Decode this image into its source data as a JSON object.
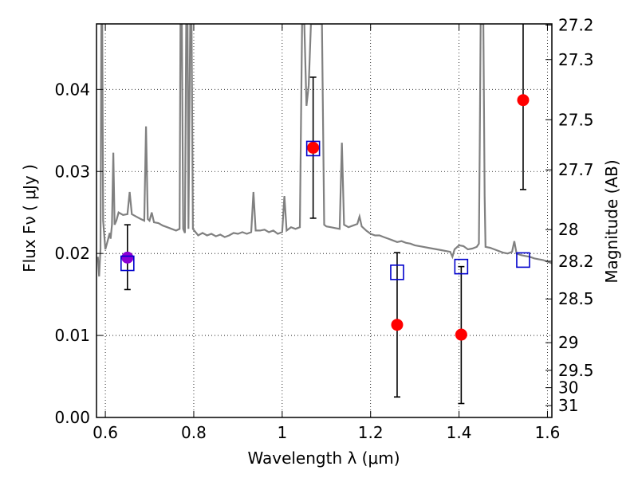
{
  "chart_data": {
    "type": "scatter",
    "xlabel": "Wavelength  λ (μm)",
    "ylabel": "Flux  Fν  ( μJy )",
    "y2label": "Magnitude (AB)",
    "xlim": [
      0.58,
      1.61
    ],
    "ylim": [
      0.0,
      0.048
    ],
    "grid": true,
    "x_ticks": [
      {
        "value": 0.6,
        "label": "0.6"
      },
      {
        "value": 0.8,
        "label": "0.8"
      },
      {
        "value": 1.0,
        "label": "1"
      },
      {
        "value": 1.2,
        "label": "1.2"
      },
      {
        "value": 1.4,
        "label": "1.4"
      },
      {
        "value": 1.6,
        "label": "1.6"
      }
    ],
    "y_ticks": [
      {
        "value": 0.0,
        "label": "0.00"
      },
      {
        "value": 0.01,
        "label": "0.01"
      },
      {
        "value": 0.02,
        "label": "0.02"
      },
      {
        "value": 0.03,
        "label": "0.03"
      },
      {
        "value": 0.04,
        "label": "0.04"
      }
    ],
    "y2_ticks": [
      {
        "value": 27.2,
        "label": "27.2"
      },
      {
        "value": 27.3,
        "label": "27.3"
      },
      {
        "value": 27.5,
        "label": "27.5"
      },
      {
        "value": 27.7,
        "label": "27.7"
      },
      {
        "value": 28.0,
        "label": "28"
      },
      {
        "value": 28.2,
        "label": "28.2"
      },
      {
        "value": 28.5,
        "label": "28.5"
      },
      {
        "value": 29.0,
        "label": "29"
      },
      {
        "value": 29.5,
        "label": "29.5"
      },
      {
        "value": 30.0,
        "label": "30"
      },
      {
        "value": 31.0,
        "label": "31"
      }
    ],
    "series": [
      {
        "kind": "line",
        "color": "#808080",
        "points": [
          [
            0.583,
            0.0196
          ],
          [
            0.586,
            0.0172
          ],
          [
            0.589,
            0.0205
          ],
          [
            0.591,
            0.048
          ],
          [
            0.593,
            0.048
          ],
          [
            0.595,
            0.024
          ],
          [
            0.6,
            0.0205
          ],
          [
            0.605,
            0.0215
          ],
          [
            0.61,
            0.0225
          ],
          [
            0.612,
            0.0218
          ],
          [
            0.615,
            0.0235
          ],
          [
            0.618,
            0.0323
          ],
          [
            0.621,
            0.0235
          ],
          [
            0.625,
            0.024
          ],
          [
            0.63,
            0.025
          ],
          [
            0.64,
            0.0247
          ],
          [
            0.65,
            0.0248
          ],
          [
            0.655,
            0.0275
          ],
          [
            0.66,
            0.0248
          ],
          [
            0.67,
            0.0245
          ],
          [
            0.68,
            0.0242
          ],
          [
            0.688,
            0.024
          ],
          [
            0.692,
            0.0355
          ],
          [
            0.696,
            0.0242
          ],
          [
            0.7,
            0.024
          ],
          [
            0.705,
            0.025
          ],
          [
            0.71,
            0.0238
          ],
          [
            0.72,
            0.0237
          ],
          [
            0.73,
            0.0234
          ],
          [
            0.74,
            0.0232
          ],
          [
            0.75,
            0.023
          ],
          [
            0.76,
            0.0228
          ],
          [
            0.768,
            0.023
          ],
          [
            0.77,
            0.048
          ],
          [
            0.773,
            0.048
          ],
          [
            0.776,
            0.023
          ],
          [
            0.78,
            0.0225
          ],
          [
            0.783,
            0.048
          ],
          [
            0.786,
            0.048
          ],
          [
            0.788,
            0.023
          ],
          [
            0.792,
            0.048
          ],
          [
            0.795,
            0.048
          ],
          [
            0.798,
            0.023
          ],
          [
            0.81,
            0.0222
          ],
          [
            0.82,
            0.0225
          ],
          [
            0.83,
            0.0222
          ],
          [
            0.84,
            0.0224
          ],
          [
            0.85,
            0.0221
          ],
          [
            0.86,
            0.0223
          ],
          [
            0.87,
            0.022
          ],
          [
            0.88,
            0.0222
          ],
          [
            0.89,
            0.0225
          ],
          [
            0.9,
            0.0224
          ],
          [
            0.91,
            0.0226
          ],
          [
            0.92,
            0.0224
          ],
          [
            0.93,
            0.0226
          ],
          [
            0.935,
            0.0275
          ],
          [
            0.94,
            0.0228
          ],
          [
            0.95,
            0.0228
          ],
          [
            0.96,
            0.0229
          ],
          [
            0.97,
            0.0226
          ],
          [
            0.98,
            0.0228
          ],
          [
            0.99,
            0.0224
          ],
          [
            1.0,
            0.0226
          ],
          [
            1.005,
            0.027
          ],
          [
            1.01,
            0.0228
          ],
          [
            1.02,
            0.0232
          ],
          [
            1.03,
            0.023
          ],
          [
            1.04,
            0.0232
          ],
          [
            1.045,
            0.048
          ],
          [
            1.05,
            0.048
          ],
          [
            1.055,
            0.038
          ],
          [
            1.06,
            0.0405
          ],
          [
            1.065,
            0.048
          ],
          [
            1.08,
            0.048
          ],
          [
            1.09,
            0.048
          ],
          [
            1.095,
            0.0235
          ],
          [
            1.1,
            0.0233
          ],
          [
            1.11,
            0.0232
          ],
          [
            1.12,
            0.0231
          ],
          [
            1.13,
            0.023
          ],
          [
            1.135,
            0.0335
          ],
          [
            1.14,
            0.0235
          ],
          [
            1.15,
            0.0232
          ],
          [
            1.16,
            0.0234
          ],
          [
            1.17,
            0.0236
          ],
          [
            1.175,
            0.0245
          ],
          [
            1.18,
            0.0233
          ],
          [
            1.19,
            0.0228
          ],
          [
            1.2,
            0.0224
          ],
          [
            1.21,
            0.0222
          ],
          [
            1.22,
            0.0222
          ],
          [
            1.23,
            0.022
          ],
          [
            1.24,
            0.0218
          ],
          [
            1.25,
            0.0216
          ],
          [
            1.26,
            0.0214
          ],
          [
            1.27,
            0.0215
          ],
          [
            1.28,
            0.0213
          ],
          [
            1.29,
            0.0212
          ],
          [
            1.3,
            0.021
          ],
          [
            1.31,
            0.0209
          ],
          [
            1.32,
            0.0208
          ],
          [
            1.33,
            0.0207
          ],
          [
            1.34,
            0.0206
          ],
          [
            1.35,
            0.0205
          ],
          [
            1.36,
            0.0204
          ],
          [
            1.37,
            0.0203
          ],
          [
            1.38,
            0.0202
          ],
          [
            1.385,
            0.0196
          ],
          [
            1.39,
            0.0205
          ],
          [
            1.4,
            0.021
          ],
          [
            1.41,
            0.0209
          ],
          [
            1.42,
            0.0205
          ],
          [
            1.43,
            0.0206
          ],
          [
            1.44,
            0.0208
          ],
          [
            1.445,
            0.0212
          ],
          [
            1.447,
            0.0335
          ],
          [
            1.449,
            0.048
          ],
          [
            1.455,
            0.048
          ],
          [
            1.458,
            0.027
          ],
          [
            1.46,
            0.0208
          ],
          [
            1.47,
            0.0207
          ],
          [
            1.48,
            0.0205
          ],
          [
            1.49,
            0.0203
          ],
          [
            1.5,
            0.0201
          ],
          [
            1.51,
            0.02
          ],
          [
            1.52,
            0.0202
          ],
          [
            1.525,
            0.0215
          ],
          [
            1.53,
            0.02
          ],
          [
            1.54,
            0.0198
          ],
          [
            1.55,
            0.0197
          ],
          [
            1.56,
            0.0196
          ],
          [
            1.57,
            0.0194
          ],
          [
            1.58,
            0.0193
          ],
          [
            1.59,
            0.0192
          ],
          [
            1.6,
            0.019
          ],
          [
            1.61,
            0.0188
          ]
        ]
      },
      {
        "kind": "points",
        "marker": "circle",
        "color": "#ff0000",
        "points": [
          {
            "x": 0.65,
            "y": 0.0195,
            "yerr_low": 0.0156,
            "yerr_high": 0.0235,
            "color": "#8b00d4"
          },
          {
            "x": 1.07,
            "y": 0.0329,
            "yerr_low": 0.0243,
            "yerr_high": 0.0415
          },
          {
            "x": 1.26,
            "y": 0.0113,
            "yerr_low": 0.0025,
            "yerr_high": 0.0201
          },
          {
            "x": 1.405,
            "y": 0.0101,
            "yerr_low": 0.0017,
            "yerr_high": 0.0184
          },
          {
            "x": 1.545,
            "y": 0.0387,
            "yerr_low": 0.0278,
            "yerr_high": 0.048
          }
        ]
      },
      {
        "kind": "points",
        "marker": "open-square",
        "color": "#0000cc",
        "points": [
          {
            "x": 0.65,
            "y": 0.0188
          },
          {
            "x": 1.07,
            "y": 0.0328
          },
          {
            "x": 1.26,
            "y": 0.0177
          },
          {
            "x": 1.405,
            "y": 0.0184
          },
          {
            "x": 1.545,
            "y": 0.0192
          }
        ]
      }
    ]
  }
}
